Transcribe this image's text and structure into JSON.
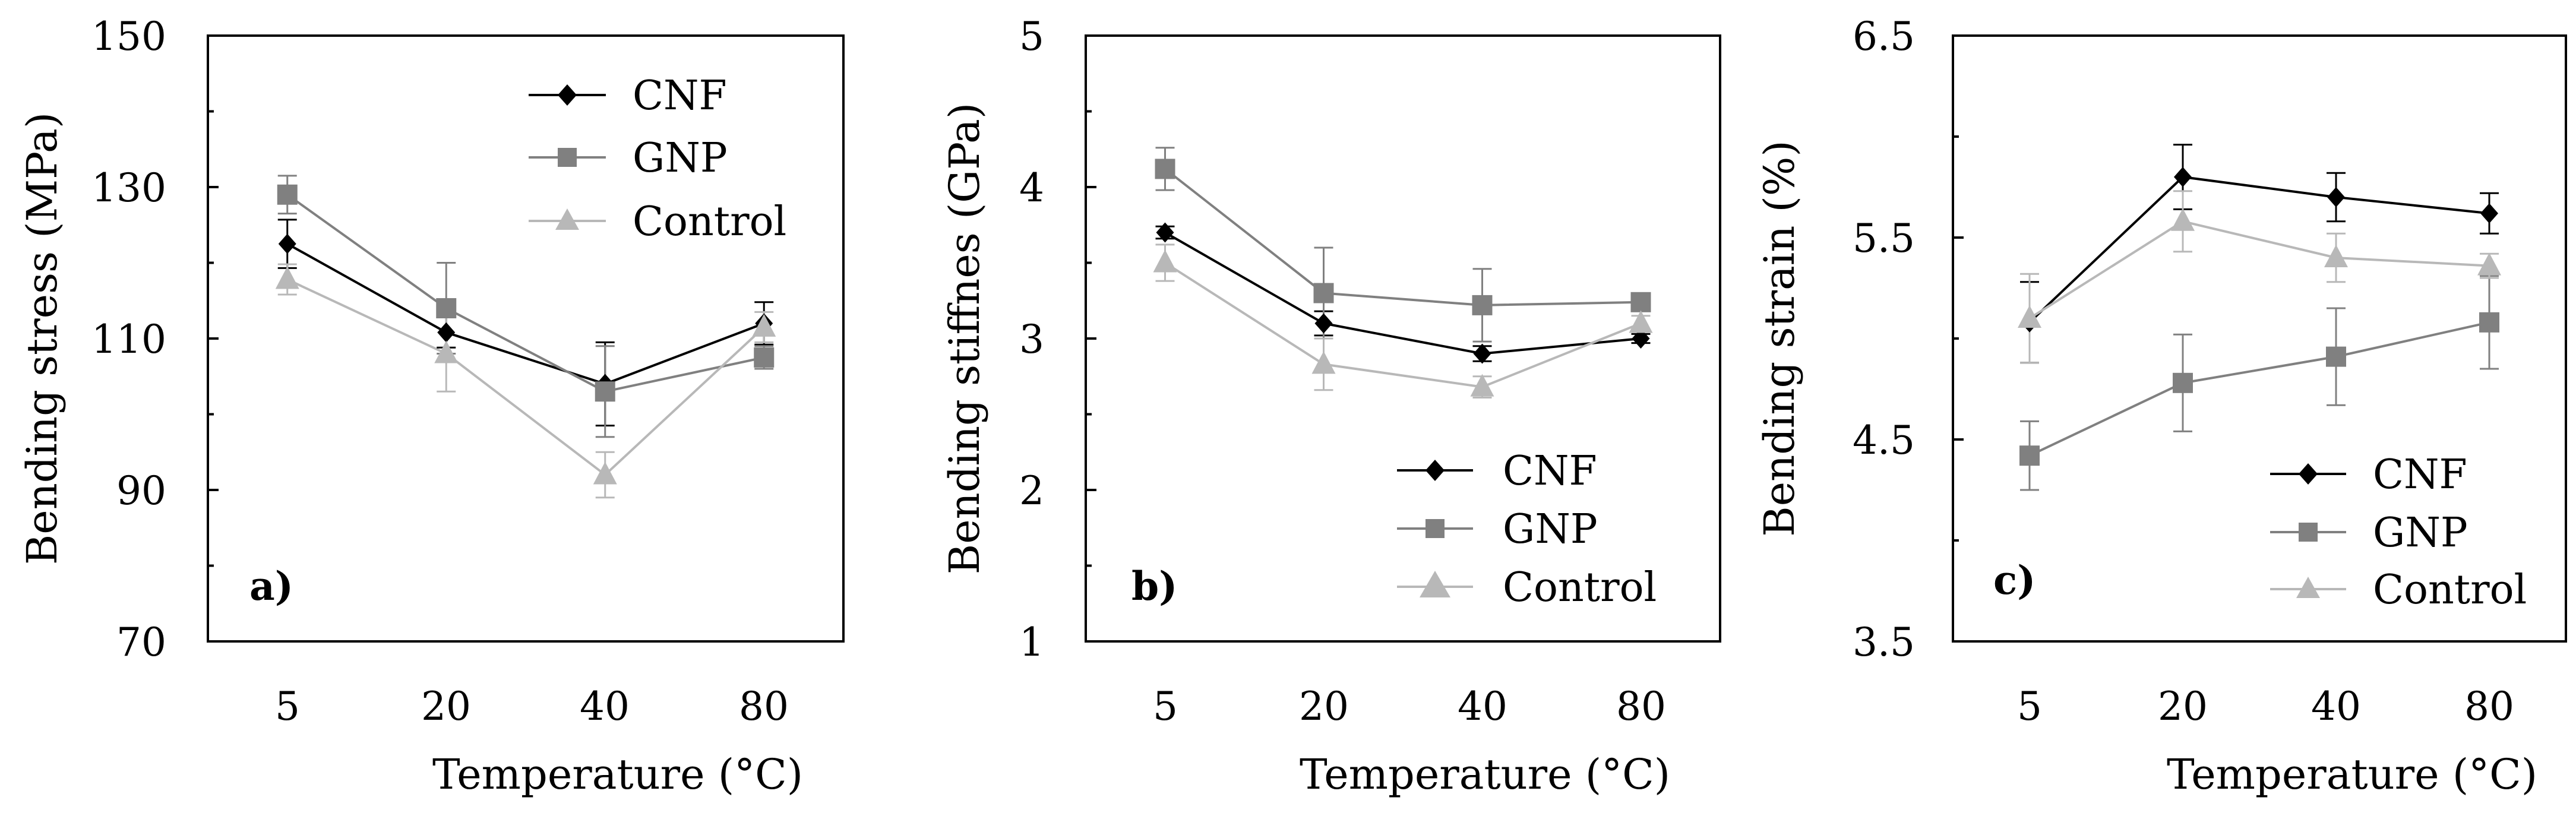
{
  "chart_data": [
    {
      "type": "line",
      "panel_label": "a)",
      "xlabel": "Temperature (°C)",
      "ylabel": "Bending stress (MPa)",
      "categories": [
        "5",
        "20",
        "40",
        "80"
      ],
      "ylim": [
        70,
        150
      ],
      "yticks": [
        "70",
        "90",
        "110",
        "130",
        "150"
      ],
      "legend_position": "top-center",
      "series": [
        {
          "name": "CNF",
          "values": [
            122.5,
            110.8,
            104.0,
            112.0
          ],
          "errors": [
            3.2,
            2.0,
            5.5,
            2.8
          ],
          "marker": "diamond",
          "color": "#000000"
        },
        {
          "name": "GNP",
          "values": [
            129.0,
            114.0,
            103.0,
            107.5
          ],
          "errors": [
            2.5,
            6.0,
            6.0,
            1.5
          ],
          "marker": "square",
          "color": "#808080"
        },
        {
          "name": "Control",
          "values": [
            117.8,
            108.0,
            92.0,
            111.5
          ],
          "errors": [
            2.0,
            5.0,
            3.0,
            2.0
          ],
          "marker": "triangle",
          "color": "#b8b8b8"
        }
      ]
    },
    {
      "type": "line",
      "panel_label": "b)",
      "xlabel": "Temperature (°C)",
      "ylabel": "Bending stiffnes (GPa)",
      "categories": [
        "5",
        "20",
        "40",
        "80"
      ],
      "ylim": [
        1,
        5
      ],
      "yticks": [
        "1",
        "2",
        "3",
        "4",
        "5"
      ],
      "legend_position": "bottom-right",
      "series": [
        {
          "name": "CNF",
          "values": [
            3.7,
            3.1,
            2.9,
            3.0
          ],
          "errors": [
            0.04,
            0.08,
            0.05,
            0.03
          ],
          "marker": "diamond",
          "color": "#000000"
        },
        {
          "name": "GNP",
          "values": [
            4.12,
            3.3,
            3.22,
            3.24
          ],
          "errors": [
            0.14,
            0.3,
            0.24,
            0.04
          ],
          "marker": "square",
          "color": "#808080"
        },
        {
          "name": "Control",
          "values": [
            3.5,
            2.83,
            2.68,
            3.1
          ],
          "errors": [
            0.12,
            0.17,
            0.07,
            0.05
          ],
          "marker": "triangle",
          "color": "#b8b8b8"
        }
      ]
    },
    {
      "type": "line",
      "panel_label": "c)",
      "xlabel": "Temperature (°C)",
      "ylabel": "Bending strain (%)",
      "categories": [
        "5",
        "20",
        "40",
        "80"
      ],
      "ylim": [
        3.5,
        6.5
      ],
      "yticks": [
        "3.5",
        "4.5",
        "5.5",
        "6.5"
      ],
      "legend_position": "bottom-right",
      "series": [
        {
          "name": "CNF",
          "values": [
            5.08,
            5.8,
            5.7,
            5.62
          ],
          "errors": [
            0.2,
            0.16,
            0.12,
            0.1
          ],
          "marker": "diamond",
          "color": "#000000"
        },
        {
          "name": "GNP",
          "values": [
            4.42,
            4.78,
            4.91,
            5.08
          ],
          "errors": [
            0.17,
            0.24,
            0.24,
            0.23
          ],
          "marker": "square",
          "color": "#808080"
        },
        {
          "name": "Control",
          "values": [
            5.1,
            5.58,
            5.4,
            5.36
          ],
          "errors": [
            0.22,
            0.15,
            0.12,
            0.06
          ],
          "marker": "triangle",
          "color": "#b8b8b8"
        }
      ]
    }
  ]
}
